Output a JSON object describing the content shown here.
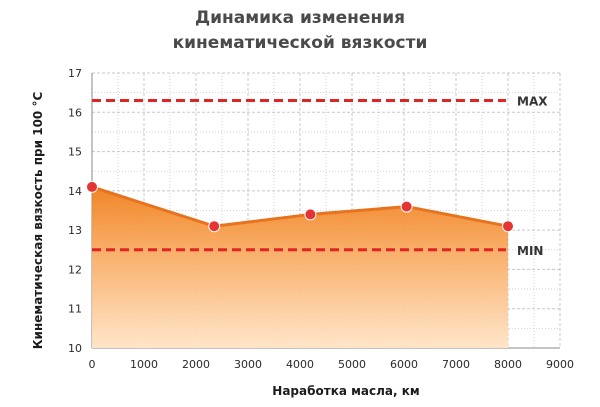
{
  "chart_data": {
    "type": "area",
    "title_line1": "Динамика изменения",
    "title_line2": "кинематической вязкости",
    "xlabel": "Наработка масла, км",
    "ylabel": "Кинематическая вязкость при 100 °C",
    "xlim": [
      0,
      9000
    ],
    "ylim": [
      10,
      17
    ],
    "xticks": [
      0,
      1000,
      2000,
      3000,
      4000,
      5000,
      6000,
      7000,
      8000,
      9000
    ],
    "yticks": [
      10,
      11,
      12,
      13,
      14,
      15,
      16,
      17
    ],
    "grid": true,
    "series": [
      {
        "x": [
          0,
          2350,
          4200,
          6050,
          8000
        ],
        "y": [
          14.1,
          13.1,
          13.4,
          13.6,
          13.1
        ]
      }
    ],
    "reference_lines": [
      {
        "label": "MAX",
        "value": 16.3
      },
      {
        "label": "MIN",
        "value": 12.5
      }
    ],
    "colors": {
      "fill_top": "#f07f1c",
      "fill_bottom": "#ffe4c6",
      "line": "#e8731f",
      "marker": "#e63333",
      "reference": "#e02424",
      "grid": "#c8c8c8",
      "title": "#4a4a4a"
    }
  }
}
